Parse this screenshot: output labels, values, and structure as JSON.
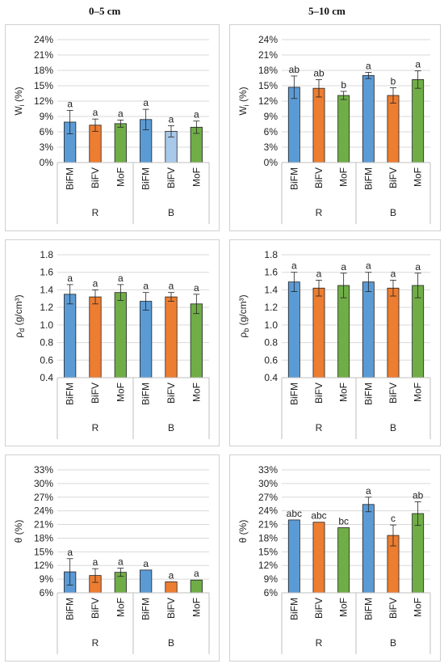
{
  "column_headers": [
    "0–5 cm",
    "5–10 cm"
  ],
  "colors": {
    "BiFM": "#5b9bd5",
    "BiFV": "#ed7d31",
    "MoF": "#70ad47",
    "BiFV_light": "#a9c9ea"
  },
  "chart_data": [
    {
      "type": "bar",
      "ylabel": "W",
      "ylabel_sub": "i",
      "ylabel_unit": " (%)",
      "yticks": [
        "0%",
        "3%",
        "6%",
        "9%",
        "12%",
        "15%",
        "18%",
        "21%",
        "24%"
      ],
      "ylim": [
        0,
        24
      ],
      "ytick_step": 3,
      "categories": [
        "BiFM",
        "BiFV",
        "MoF",
        "BiFM",
        "BiFV",
        "MoF"
      ],
      "groups": [
        "R",
        "B"
      ],
      "values": [
        7.9,
        7.3,
        7.6,
        8.4,
        6.1,
        6.9
      ],
      "errors": [
        2.3,
        1.2,
        0.7,
        2.0,
        1.1,
        1.2
      ],
      "letters": [
        "a",
        "a",
        "a",
        "a",
        "a",
        "a"
      ],
      "bar_colors": [
        "BiFM",
        "BiFV",
        "MoF",
        "BiFM",
        "BiFV_light",
        "MoF"
      ]
    },
    {
      "type": "bar",
      "ylabel": "W",
      "ylabel_sub": "i",
      "ylabel_unit": " (%)",
      "yticks": [
        "0%",
        "3%",
        "6%",
        "9%",
        "12%",
        "15%",
        "18%",
        "21%",
        "24%"
      ],
      "ylim": [
        0,
        24
      ],
      "ytick_step": 3,
      "categories": [
        "BiFM",
        "BiFV",
        "MoF",
        "BiFM",
        "BiFV",
        "MoF"
      ],
      "groups": [
        "R",
        "B"
      ],
      "values": [
        14.7,
        14.5,
        13.1,
        17.0,
        13.1,
        16.2
      ],
      "errors": [
        2.2,
        1.7,
        0.8,
        0.6,
        1.5,
        1.7
      ],
      "letters": [
        "ab",
        "ab",
        "b",
        "a",
        "b",
        "a"
      ],
      "bar_colors": [
        "BiFM",
        "BiFV",
        "MoF",
        "BiFM",
        "BiFV",
        "MoF"
      ]
    },
    {
      "type": "bar",
      "ylabel": "ρ",
      "ylabel_sub": "d",
      "ylabel_unit": " (g/cm³)",
      "yticks": [
        "0.4",
        "0.6",
        "0.8",
        "1.0",
        "1.2",
        "1.4",
        "1.6",
        "1.8"
      ],
      "ylim": [
        0.4,
        1.8
      ],
      "ytick_step": 0.2,
      "categories": [
        "BiFM",
        "BiFV",
        "MoF",
        "BiFM",
        "BiFV",
        "MoF"
      ],
      "groups": [
        "R",
        "B"
      ],
      "values": [
        1.35,
        1.32,
        1.37,
        1.27,
        1.32,
        1.24
      ],
      "errors": [
        0.11,
        0.08,
        0.09,
        0.1,
        0.05,
        0.11
      ],
      "letters": [
        "a",
        "a",
        "a",
        "a",
        "a",
        "a"
      ],
      "bar_colors": [
        "BiFM",
        "BiFV",
        "MoF",
        "BiFM",
        "BiFV",
        "MoF"
      ]
    },
    {
      "type": "bar",
      "ylabel": "ρ",
      "ylabel_sub": "b",
      "ylabel_unit": " (g/cm³)",
      "yticks": [
        "0.4",
        "0.6",
        "0.8",
        "1.0",
        "1.2",
        "1.4",
        "1.6",
        "1.8"
      ],
      "ylim": [
        0.4,
        1.8
      ],
      "ytick_step": 0.2,
      "categories": [
        "BiFM",
        "BiFV",
        "MoF",
        "BiFM",
        "BiFV",
        "MoF"
      ],
      "groups": [
        "R",
        "B"
      ],
      "values": [
        1.49,
        1.42,
        1.45,
        1.49,
        1.42,
        1.45
      ],
      "errors": [
        0.11,
        0.09,
        0.14,
        0.11,
        0.09,
        0.14
      ],
      "letters": [
        "a",
        "a",
        "a",
        "a",
        "a",
        "a"
      ],
      "bar_colors": [
        "BiFM",
        "BiFV",
        "MoF",
        "BiFM",
        "BiFV",
        "MoF"
      ]
    },
    {
      "type": "bar",
      "ylabel": "θ",
      "ylabel_sub": "",
      "ylabel_unit": " (%)",
      "yticks": [
        "6%",
        "9%",
        "12%",
        "15%",
        "18%",
        "21%",
        "24%",
        "27%",
        "30%",
        "33%"
      ],
      "ylim": [
        6,
        33
      ],
      "ytick_step": 3,
      "categories": [
        "BiFM",
        "BiFV",
        "MoF",
        "BiFM",
        "BiFV",
        "MoF"
      ],
      "groups": [
        "R",
        "B"
      ],
      "values": [
        10.6,
        9.8,
        10.5,
        11.0,
        8.4,
        8.8
      ],
      "errors": [
        2.9,
        1.5,
        0.9,
        0,
        0,
        0
      ],
      "letters": [
        "a",
        "a",
        "a",
        "a",
        "a",
        "a"
      ],
      "bar_colors": [
        "BiFM",
        "BiFV",
        "MoF",
        "BiFM",
        "BiFV",
        "MoF"
      ]
    },
    {
      "type": "bar",
      "ylabel": "θ",
      "ylabel_sub": "",
      "ylabel_unit": " (%)",
      "yticks": [
        "6%",
        "9%",
        "12%",
        "15%",
        "18%",
        "21%",
        "24%",
        "27%",
        "30%",
        "33%"
      ],
      "ylim": [
        6,
        33
      ],
      "ytick_step": 3,
      "categories": [
        "BiFM",
        "BiFV",
        "MoF",
        "BiFM",
        "BiFV",
        "MoF"
      ],
      "groups": [
        "R",
        "B"
      ],
      "values": [
        22.0,
        21.5,
        20.3,
        25.4,
        18.6,
        23.4
      ],
      "errors": [
        0,
        0,
        0,
        1.6,
        2.3,
        2.6
      ],
      "letters": [
        "abc",
        "abc",
        "bc",
        "a",
        "c",
        "ab"
      ],
      "bar_colors": [
        "BiFM",
        "BiFV",
        "MoF",
        "BiFM",
        "BiFV",
        "MoF"
      ]
    }
  ]
}
